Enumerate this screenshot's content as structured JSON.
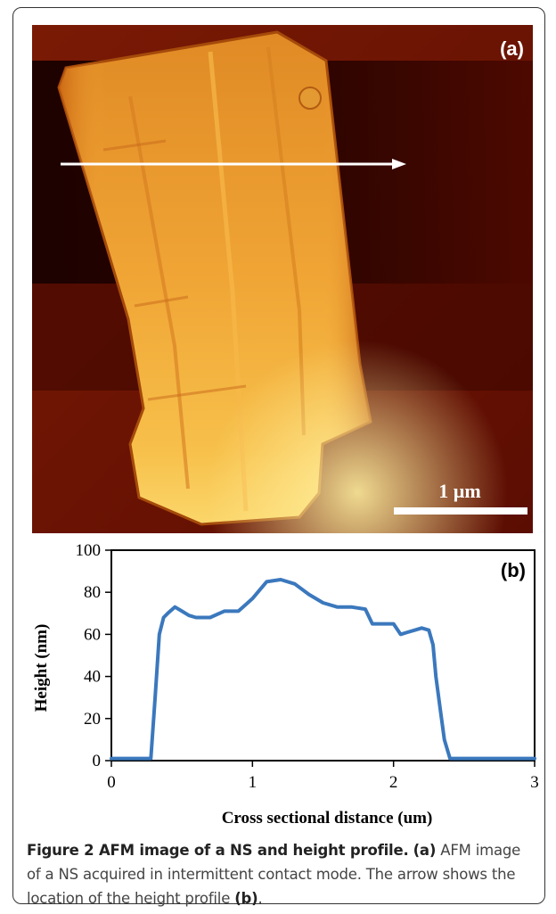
{
  "figure": {
    "panel_a_label": "(a)",
    "panel_b_label": "(b)",
    "scale_bar_label": "1 µm",
    "caption": {
      "title": "Figure 2 AFM image of a NS and height profile.",
      "part1_label": "(a)",
      "part1_text": " AFM image of a NS acquired in intermittent contact mode. The arrow shows the location of the height profile ",
      "part2_label": "(b)",
      "part2_text": "."
    },
    "colors": {
      "afm_background": "#5a0a00",
      "afm_dark_band": "#1a0000",
      "nanosheet": "#f0a030",
      "profile_line": "#3b78bd",
      "arrow": "#ffffff"
    }
  },
  "chart_data": {
    "type": "line",
    "title": "",
    "xlabel": "Cross sectional distance (um)",
    "ylabel": "Height (nm)",
    "xlim": [
      0,
      3
    ],
    "ylim": [
      0,
      100
    ],
    "xticks": [
      "0",
      "1",
      "2",
      "3"
    ],
    "yticks": [
      "0",
      "20",
      "40",
      "60",
      "80",
      "100"
    ],
    "grid": false,
    "legend": "none",
    "series": [
      {
        "x": [
          0,
          0.1,
          0.2,
          0.28,
          0.31,
          0.34,
          0.37,
          0.4,
          0.45,
          0.5,
          0.55,
          0.6,
          0.7,
          0.8,
          0.9,
          0.95,
          1.0,
          1.1,
          1.2,
          1.3,
          1.4,
          1.5,
          1.6,
          1.7,
          1.8,
          1.85,
          1.9,
          2.0,
          2.05,
          2.1,
          2.15,
          2.2,
          2.25,
          2.28,
          2.3,
          2.33,
          2.36,
          2.4,
          2.45,
          2.6,
          2.8,
          3.0
        ],
        "y": [
          1,
          1,
          1,
          1,
          30,
          60,
          68,
          70,
          73,
          71,
          69,
          68,
          68,
          71,
          71,
          74,
          77,
          85,
          86,
          84,
          79,
          75,
          73,
          73,
          72,
          65,
          65,
          65,
          60,
          61,
          62,
          63,
          62,
          55,
          40,
          25,
          10,
          1,
          1,
          1,
          1,
          1
        ]
      }
    ]
  }
}
